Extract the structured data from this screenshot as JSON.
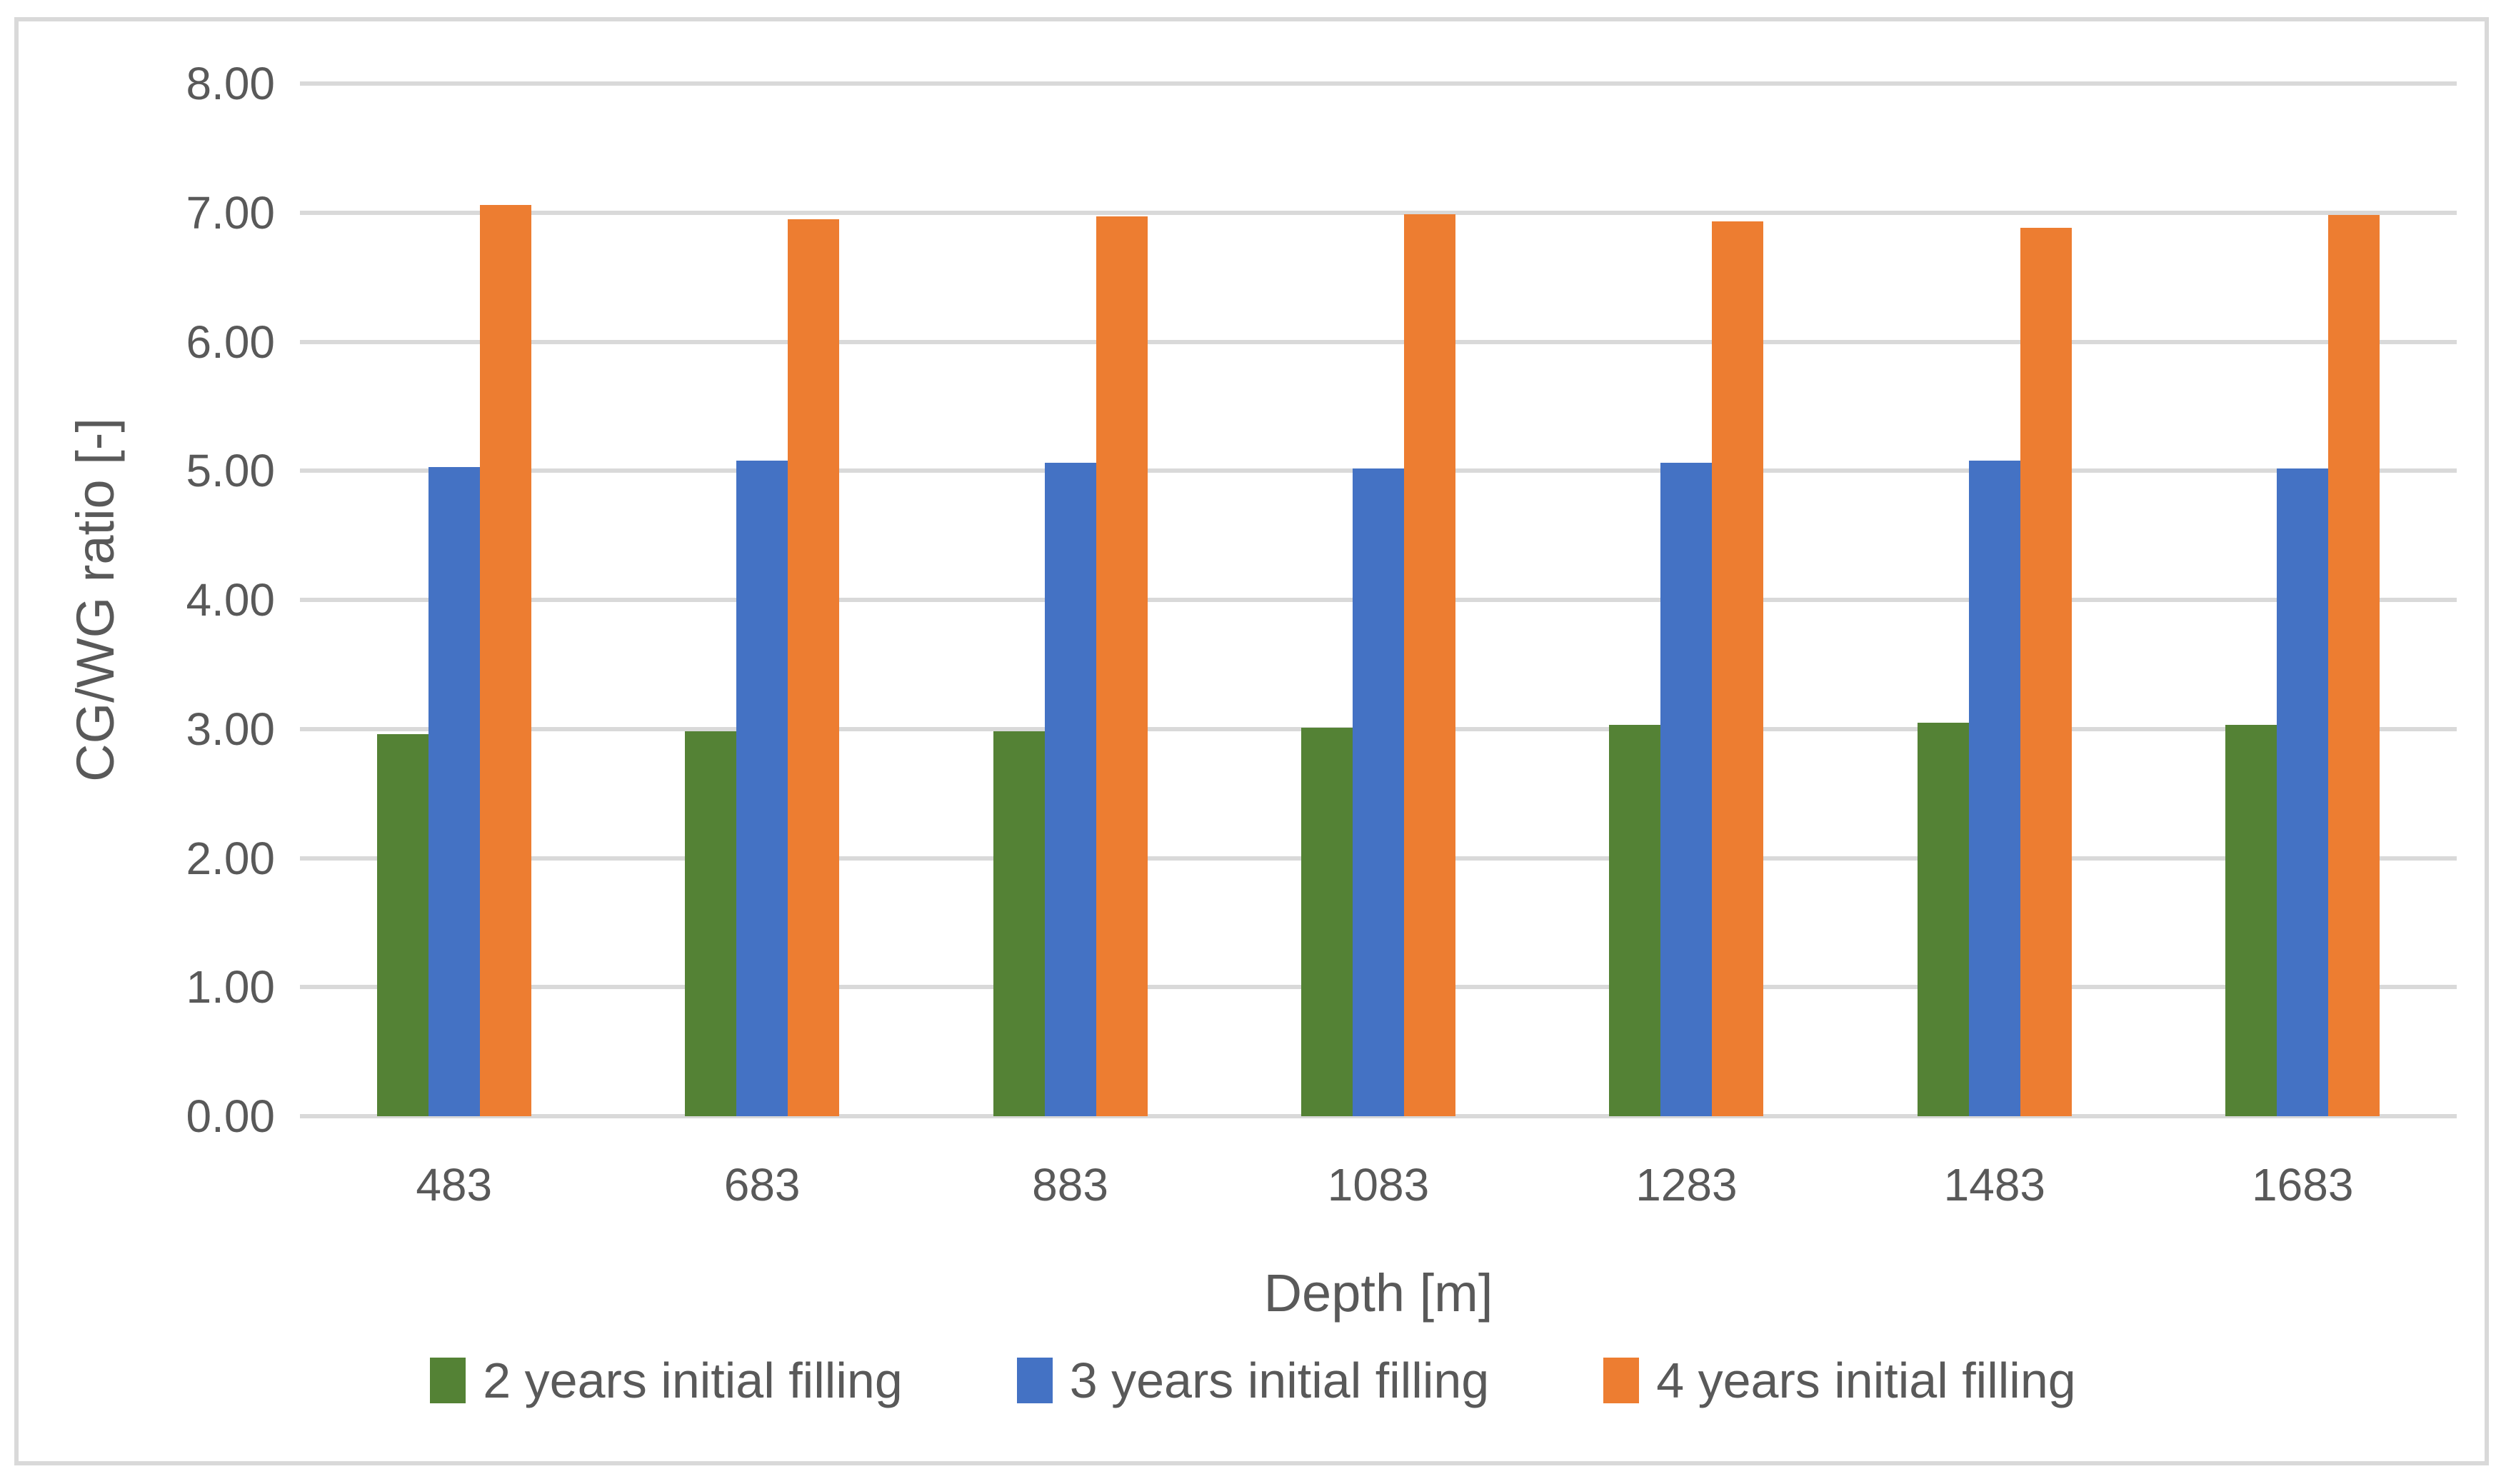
{
  "figure": {
    "background_color": "#FFFFFF",
    "frame_border_color": "#D9D9D9"
  },
  "chart_data": {
    "type": "bar",
    "title": "",
    "categories": [
      "483",
      "683",
      "883",
      "1083",
      "1283",
      "1483",
      "1683"
    ],
    "series": [
      {
        "name": "2 years initial filling",
        "color": "#548235",
        "values": [
          2.96,
          2.98,
          2.98,
          3.01,
          3.03,
          3.05,
          3.03
        ]
      },
      {
        "name": "3 years initial filling",
        "color": "#4472C4",
        "values": [
          5.03,
          5.08,
          5.06,
          5.02,
          5.06,
          5.08,
          5.02
        ]
      },
      {
        "name": "4 years initial filling",
        "color": "#ED7D31",
        "values": [
          7.06,
          6.95,
          6.97,
          6.99,
          6.93,
          6.88,
          6.98
        ]
      }
    ],
    "xlabel": "Depth [m]",
    "ylabel": "CG/WG ratio [-]",
    "ylim": [
      0,
      8
    ],
    "y_ticks": [
      "0.00",
      "1.00",
      "2.00",
      "3.00",
      "4.00",
      "5.00",
      "6.00",
      "7.00",
      "8.00"
    ],
    "grid": "horizontal",
    "gridline_color": "#D9D9D9",
    "text_color": "#595959",
    "legend_position": "bottom"
  }
}
